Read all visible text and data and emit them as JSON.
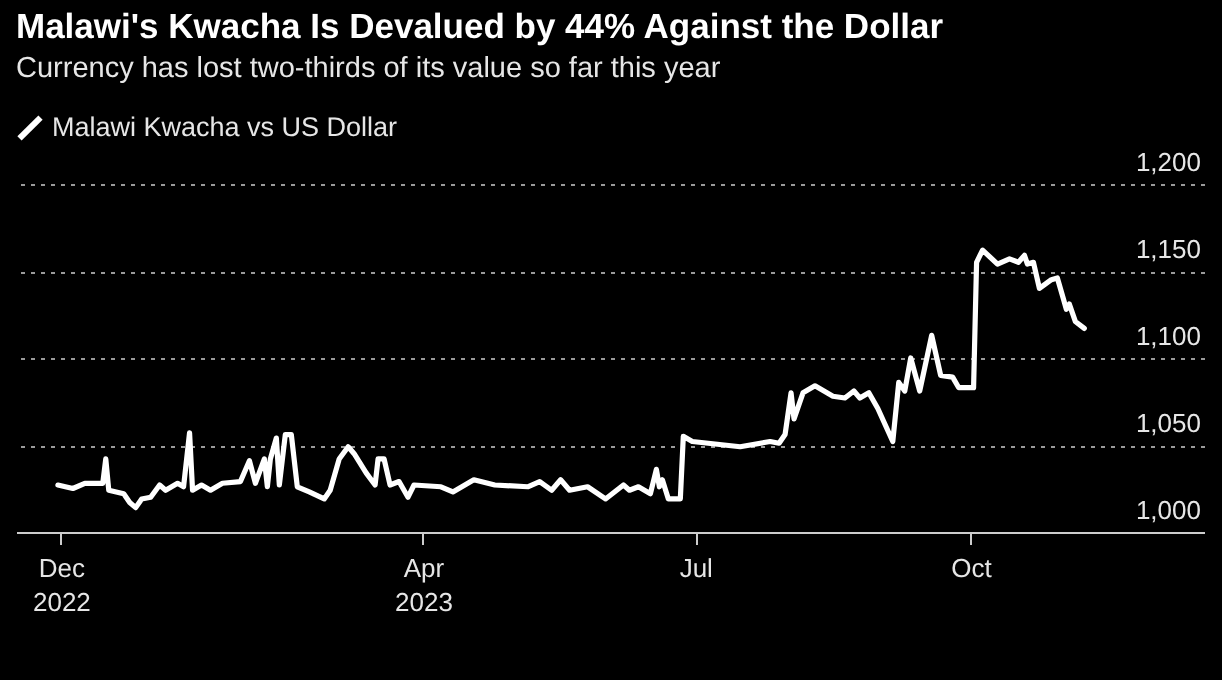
{
  "chart_data": {
    "type": "line",
    "title": "Malawi's Kwacha Is Devalued by 44% Against the Dollar",
    "subtitle": "Currency has lost two-thirds of its value so far this year",
    "x": [
      "2022-11-30",
      "2022-12-05",
      "2022-12-09",
      "2022-12-15",
      "2022-12-16",
      "2022-12-17",
      "2022-12-22",
      "2022-12-24",
      "2022-12-26",
      "2022-12-28",
      "2022-12-31",
      "2023-01-03",
      "2023-01-05",
      "2023-01-09",
      "2023-01-11",
      "2023-01-13",
      "2023-01-14",
      "2023-01-17",
      "2023-01-20",
      "2023-01-24",
      "2023-01-30",
      "2023-02-02",
      "2023-02-04",
      "2023-02-07",
      "2023-02-08",
      "2023-02-09",
      "2023-02-11",
      "2023-02-12",
      "2023-02-14",
      "2023-02-16",
      "2023-02-18",
      "2023-02-22",
      "2023-02-27",
      "2023-03-01",
      "2023-03-04",
      "2023-03-07",
      "2023-03-09",
      "2023-03-13",
      "2023-03-16",
      "2023-03-17",
      "2023-03-19",
      "2023-03-21",
      "2023-03-24",
      "2023-03-27",
      "2023-03-29",
      "2023-04-07",
      "2023-04-11",
      "2023-04-18",
      "2023-04-25",
      "2023-05-06",
      "2023-05-10",
      "2023-05-14",
      "2023-05-17",
      "2023-05-20",
      "2023-05-26",
      "2023-06-01",
      "2023-06-07",
      "2023-06-09",
      "2023-06-12",
      "2023-06-16",
      "2023-06-18",
      "2023-06-19",
      "2023-06-20",
      "2023-06-22",
      "2023-06-26",
      "2023-06-27",
      "2023-06-30",
      "2023-07-16",
      "2023-07-26",
      "2023-07-29",
      "2023-07-31",
      "2023-08-02",
      "2023-08-03",
      "2023-08-06",
      "2023-08-10",
      "2023-08-13",
      "2023-08-16",
      "2023-08-20",
      "2023-08-23",
      "2023-08-25",
      "2023-08-28",
      "2023-08-31",
      "2023-09-05",
      "2023-09-07",
      "2023-09-09",
      "2023-09-11",
      "2023-09-14",
      "2023-09-18",
      "2023-09-21",
      "2023-09-25",
      "2023-09-27",
      "2023-10-02",
      "2023-10-03",
      "2023-10-05",
      "2023-10-10",
      "2023-10-14",
      "2023-10-17",
      "2023-10-19",
      "2023-10-20",
      "2023-10-22",
      "2023-10-24",
      "2023-10-28",
      "2023-10-30",
      "2023-11-01",
      "2023-11-02",
      "2023-11-03",
      "2023-11-05",
      "2023-11-08"
    ],
    "series": [
      {
        "name": "Malawi Kwacha vs US Dollar",
        "color": "#ffffff",
        "values": [
          1027,
          1025,
          1028,
          1028,
          1042,
          1024,
          1022,
          1017,
          1014,
          1019,
          1020,
          1027,
          1024,
          1028,
          1026,
          1057,
          1024,
          1027,
          1024,
          1028,
          1029,
          1041,
          1028,
          1042,
          1026,
          1042,
          1054,
          1027,
          1056,
          1056,
          1026,
          1023,
          1019,
          1024,
          1042,
          1049,
          1045,
          1034,
          1027,
          1042,
          1042,
          1027,
          1029,
          1020,
          1027,
          1026,
          1023,
          1030,
          1027,
          1026,
          1029,
          1024,
          1030,
          1024,
          1026,
          1019,
          1027,
          1024,
          1026,
          1022,
          1036,
          1026,
          1030,
          1019,
          1019,
          1055,
          1052,
          1049,
          1052,
          1051,
          1056,
          1080,
          1065,
          1080,
          1084,
          1081,
          1078,
          1077,
          1081,
          1077,
          1080,
          1071,
          1052,
          1086,
          1081,
          1100,
          1081,
          1113,
          1090,
          1089,
          1083,
          1083,
          1155,
          1162,
          1154,
          1157,
          1155,
          1159,
          1154,
          1155,
          1140,
          1145,
          1146,
          1134,
          1128,
          1131,
          1121,
          1117
        ]
      }
    ],
    "xlim": [
      "2022-11-16",
      "2023-12-18"
    ],
    "xticks": [
      {
        "value": "2022-12-01",
        "label": "Dec 2022"
      },
      {
        "value": "2023-04-01",
        "label": "Apr 2023"
      },
      {
        "value": "2023-07-01",
        "label": "Jul"
      },
      {
        "value": "2023-10-01",
        "label": "Oct"
      }
    ],
    "ylim": [
      1000,
      1200
    ],
    "yticks": [
      {
        "value": 1000,
        "label": "1,000"
      },
      {
        "value": 1050,
        "label": "1,050"
      },
      {
        "value": 1100,
        "label": "1,100"
      },
      {
        "value": 1150,
        "label": "1,150"
      },
      {
        "value": 1200,
        "label": "1,200"
      }
    ],
    "grid": "y",
    "legend": "top left",
    "marker": "none",
    "line_style": "solid"
  }
}
